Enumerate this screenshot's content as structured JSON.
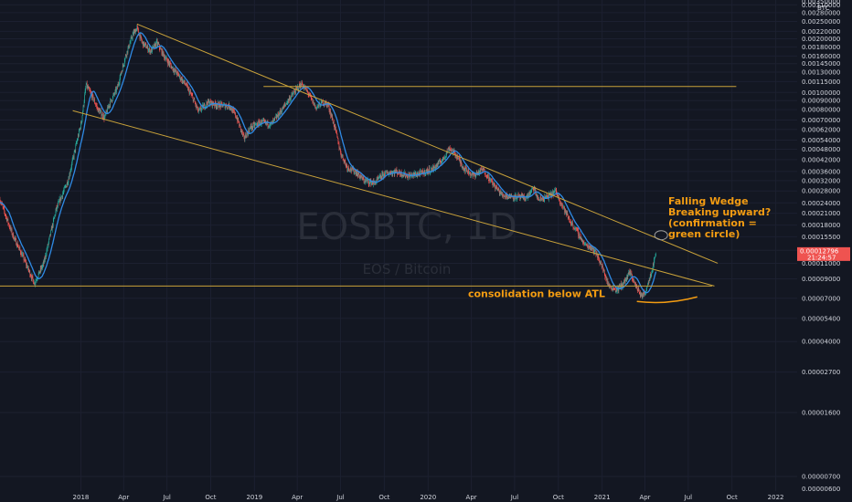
{
  "chart_data": {
    "type": "candlestick",
    "title": "EOSBTC, 1D",
    "subtitle": "EOS / Bitcoin",
    "y_unit": "BTC",
    "y_scale": "log",
    "ylim": [
      5.8e-06,
      0.0033
    ],
    "xlim": [
      "2017-07-15",
      "2022-02-15"
    ],
    "y_ticks": [
      {
        "value": 0.0031,
        "label": "0.00310000"
      },
      {
        "value": 0.0028,
        "label": "0.00280000"
      },
      {
        "value": 0.0025,
        "label": "0.00250000"
      },
      {
        "value": 0.0022,
        "label": "0.00220000"
      },
      {
        "value": 0.002,
        "label": "0.00200000"
      },
      {
        "value": 0.0018,
        "label": "0.00180000"
      },
      {
        "value": 0.0016,
        "label": "0.00160000"
      },
      {
        "value": 0.00145,
        "label": "0.00145000"
      },
      {
        "value": 0.0013,
        "label": "0.00130000"
      },
      {
        "value": 0.00115,
        "label": "0.00115000"
      },
      {
        "value": 0.001,
        "label": "0.00100000"
      },
      {
        "value": 0.0009,
        "label": "0.00090000"
      },
      {
        "value": 0.0008,
        "label": "0.00080000"
      },
      {
        "value": 0.0007,
        "label": "0.00070000"
      },
      {
        "value": 0.00062,
        "label": "0.00062000"
      },
      {
        "value": 0.00054,
        "label": "0.00054000"
      },
      {
        "value": 0.00048,
        "label": "0.00048000"
      },
      {
        "value": 0.00042,
        "label": "0.00042000"
      },
      {
        "value": 0.00036,
        "label": "0.00036000"
      },
      {
        "value": 0.00032,
        "label": "0.00032000"
      },
      {
        "value": 0.00028,
        "label": "0.00028000"
      },
      {
        "value": 0.00024,
        "label": "0.00024000"
      },
      {
        "value": 0.00021,
        "label": "0.00021000"
      },
      {
        "value": 0.00018,
        "label": "0.00018000"
      },
      {
        "value": 0.000155,
        "label": "0.00015500"
      },
      {
        "value": 0.00013,
        "label": "0.00013000"
      },
      {
        "value": 0.00011,
        "label": "0.00011000"
      },
      {
        "value": 9e-05,
        "label": "0.00009000"
      },
      {
        "value": 7e-05,
        "label": "0.00007000"
      },
      {
        "value": 5.4e-05,
        "label": "0.00005400"
      },
      {
        "value": 4e-05,
        "label": "0.00004000"
      },
      {
        "value": 2.7e-05,
        "label": "0.00002700"
      },
      {
        "value": 1.6e-05,
        "label": "0.00001600"
      },
      {
        "value": 7e-06,
        "label": "0.00000700"
      }
    ],
    "y_tick_top_partial": "0.00350000",
    "y_tick_bottom_partial": "0.00000600",
    "x_ticks": [
      {
        "date": "2018-01-01",
        "label": "2018"
      },
      {
        "date": "2018-04-01",
        "label": "Apr"
      },
      {
        "date": "2018-07-01",
        "label": "Jul"
      },
      {
        "date": "2018-10-01",
        "label": "Oct"
      },
      {
        "date": "2019-01-01",
        "label": "2019"
      },
      {
        "date": "2019-04-01",
        "label": "Apr"
      },
      {
        "date": "2019-07-01",
        "label": "Jul"
      },
      {
        "date": "2019-10-01",
        "label": "Oct"
      },
      {
        "date": "2020-01-01",
        "label": "2020"
      },
      {
        "date": "2020-04-01",
        "label": "Apr"
      },
      {
        "date": "2020-07-01",
        "label": "Jul"
      },
      {
        "date": "2020-10-01",
        "label": "Oct"
      },
      {
        "date": "2021-01-01",
        "label": "2021"
      },
      {
        "date": "2021-04-01",
        "label": "Apr"
      },
      {
        "date": "2021-07-01",
        "label": "Jul"
      },
      {
        "date": "2021-10-01",
        "label": "Oct"
      },
      {
        "date": "2022-01-01",
        "label": "2022"
      }
    ],
    "price_path": [
      {
        "date": "2017-07-15",
        "price": 0.00025
      },
      {
        "date": "2017-08-10",
        "price": 0.00016
      },
      {
        "date": "2017-09-01",
        "price": 0.00012
      },
      {
        "date": "2017-09-25",
        "price": 8.5e-05
      },
      {
        "date": "2017-10-15",
        "price": 0.00011
      },
      {
        "date": "2017-11-10",
        "price": 0.00022
      },
      {
        "date": "2017-12-05",
        "price": 0.00032
      },
      {
        "date": "2017-12-20",
        "price": 0.00048
      },
      {
        "date": "2018-01-02",
        "price": 0.00068
      },
      {
        "date": "2018-01-12",
        "price": 0.0011
      },
      {
        "date": "2018-01-25",
        "price": 0.00095
      },
      {
        "date": "2018-02-06",
        "price": 0.0008
      },
      {
        "date": "2018-02-20",
        "price": 0.00072
      },
      {
        "date": "2018-03-01",
        "price": 0.00085
      },
      {
        "date": "2018-03-18",
        "price": 0.00105
      },
      {
        "date": "2018-04-05",
        "price": 0.0016
      },
      {
        "date": "2018-04-20",
        "price": 0.0021
      },
      {
        "date": "2018-04-29",
        "price": 0.0023
      },
      {
        "date": "2018-05-10",
        "price": 0.0019
      },
      {
        "date": "2018-05-28",
        "price": 0.0017
      },
      {
        "date": "2018-06-10",
        "price": 0.0019
      },
      {
        "date": "2018-06-25",
        "price": 0.0016
      },
      {
        "date": "2018-07-10",
        "price": 0.0014
      },
      {
        "date": "2018-07-25",
        "price": 0.00125
      },
      {
        "date": "2018-08-10",
        "price": 0.0011
      },
      {
        "date": "2018-08-25",
        "price": 0.00092
      },
      {
        "date": "2018-09-05",
        "price": 0.00078
      },
      {
        "date": "2018-09-25",
        "price": 0.00088
      },
      {
        "date": "2018-10-15",
        "price": 0.00085
      },
      {
        "date": "2018-11-10",
        "price": 0.00084
      },
      {
        "date": "2018-11-25",
        "price": 0.00072
      },
      {
        "date": "2018-12-10",
        "price": 0.00055
      },
      {
        "date": "2018-12-25",
        "price": 0.00064
      },
      {
        "date": "2019-01-15",
        "price": 0.00068
      },
      {
        "date": "2019-02-05",
        "price": 0.00066
      },
      {
        "date": "2019-02-25",
        "price": 0.00078
      },
      {
        "date": "2019-03-15",
        "price": 0.00092
      },
      {
        "date": "2019-04-01",
        "price": 0.00105
      },
      {
        "date": "2019-04-10",
        "price": 0.00112
      },
      {
        "date": "2019-04-25",
        "price": 0.00098
      },
      {
        "date": "2019-05-10",
        "price": 0.00082
      },
      {
        "date": "2019-05-25",
        "price": 0.00088
      },
      {
        "date": "2019-06-05",
        "price": 0.00085
      },
      {
        "date": "2019-06-20",
        "price": 0.00062
      },
      {
        "date": "2019-07-01",
        "price": 0.00046
      },
      {
        "date": "2019-07-15",
        "price": 0.00038
      },
      {
        "date": "2019-08-01",
        "price": 0.00036
      },
      {
        "date": "2019-08-20",
        "price": 0.00032
      },
      {
        "date": "2019-09-10",
        "price": 0.00031
      },
      {
        "date": "2019-10-01",
        "price": 0.00035
      },
      {
        "date": "2019-10-25",
        "price": 0.00036
      },
      {
        "date": "2019-11-20",
        "price": 0.00034
      },
      {
        "date": "2019-12-15",
        "price": 0.00035
      },
      {
        "date": "2020-01-10",
        "price": 0.00037
      },
      {
        "date": "2020-02-01",
        "price": 0.00042
      },
      {
        "date": "2020-02-15",
        "price": 0.00049
      },
      {
        "date": "2020-03-01",
        "price": 0.00044
      },
      {
        "date": "2020-03-15",
        "price": 0.00038
      },
      {
        "date": "2020-04-05",
        "price": 0.00034
      },
      {
        "date": "2020-04-25",
        "price": 0.00037
      },
      {
        "date": "2020-05-15",
        "price": 0.00031
      },
      {
        "date": "2020-06-05",
        "price": 0.000265
      },
      {
        "date": "2020-07-01",
        "price": 0.00026
      },
      {
        "date": "2020-07-25",
        "price": 0.000255
      },
      {
        "date": "2020-08-10",
        "price": 0.00029
      },
      {
        "date": "2020-08-20",
        "price": 0.00025
      },
      {
        "date": "2020-09-10",
        "price": 0.00026
      },
      {
        "date": "2020-09-25",
        "price": 0.00028
      },
      {
        "date": "2020-10-10",
        "price": 0.00023
      },
      {
        "date": "2020-10-25",
        "price": 0.00019
      },
      {
        "date": "2020-11-10",
        "price": 0.000165
      },
      {
        "date": "2020-11-25",
        "price": 0.00014
      },
      {
        "date": "2020-12-10",
        "price": 0.000135
      },
      {
        "date": "2020-12-20",
        "price": 0.000125
      },
      {
        "date": "2021-01-01",
        "price": 0.000105
      },
      {
        "date": "2021-01-15",
        "price": 8.2e-05
      },
      {
        "date": "2021-02-01",
        "price": 7.8e-05
      },
      {
        "date": "2021-02-15",
        "price": 8.5e-05
      },
      {
        "date": "2021-03-01",
        "price": 9.8e-05
      },
      {
        "date": "2021-03-10",
        "price": 8.5e-05
      },
      {
        "date": "2021-03-25",
        "price": 7.2e-05
      },
      {
        "date": "2021-04-01",
        "price": 7.5e-05
      },
      {
        "date": "2021-04-10",
        "price": 9e-05
      },
      {
        "date": "2021-04-18",
        "price": 0.000106
      },
      {
        "date": "2021-04-24",
        "price": 0.000128
      }
    ],
    "lines": [
      {
        "name": "upper-trendline",
        "from": {
          "date": "2018-04-29",
          "price": 0.00242
        },
        "to": {
          "date": "2021-09-01",
          "price": 0.00011
        }
      },
      {
        "name": "lower-trendline",
        "from": {
          "date": "2017-12-15",
          "price": 0.00079
        },
        "to": {
          "date": "2021-08-25",
          "price": 8.2e-05
        }
      },
      {
        "name": "resistance-line",
        "from": {
          "date": "2019-01-20",
          "price": 0.00108
        },
        "to": {
          "date": "2021-10-10",
          "price": 0.00108
        }
      },
      {
        "name": "atl-line",
        "from": {
          "date": "2017-07-15",
          "price": 8.2e-05
        },
        "to": {
          "date": "2021-08-20",
          "price": 8.2e-05
        }
      }
    ],
    "circle": {
      "date": "2021-05-05",
      "price": 0.000158
    },
    "current_price": {
      "value": "0.00012796",
      "time": "21:24:57"
    },
    "annotations": [
      {
        "lines": [
          "Falling Wedge",
          "Breaking upward?",
          "(confirmation =",
          "green circle)"
        ]
      },
      {
        "lines": [
          "consolidation below ATL"
        ]
      }
    ]
  },
  "colors": {
    "background": "#131722",
    "grid": "#1c2030",
    "up": "#26a69a",
    "down": "#ef5350",
    "ma": "#2f8be6",
    "trendline": "#c9a23a",
    "annotation": "#f39c12",
    "axis_text": "#d1d4dc",
    "price_label": "#ef5350"
  }
}
